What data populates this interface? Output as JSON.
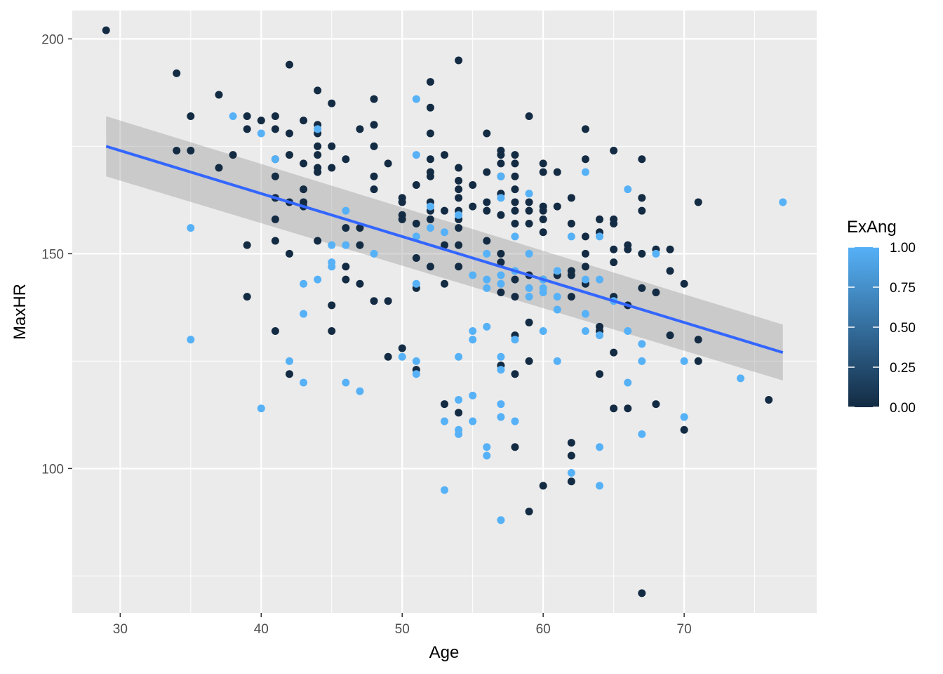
{
  "chart_data": {
    "type": "scatter",
    "xlabel": "Age",
    "ylabel": "MaxHR",
    "xlim": [
      26.6,
      79.4
    ],
    "ylim": [
      66.4,
      206.6
    ],
    "x_ticks": [
      30,
      40,
      50,
      60,
      70
    ],
    "y_ticks": [
      100,
      150,
      200
    ],
    "grid": true,
    "legend": {
      "title": "ExAng",
      "position": "right",
      "type": "colorbar",
      "ticks": [
        "1.00",
        "0.75",
        "0.50",
        "0.25",
        "0.00"
      ],
      "low_color": "#132b43",
      "high_color": "#56b1f7"
    },
    "smooth": {
      "method": "lm",
      "x": [
        29,
        77
      ],
      "y": [
        175,
        127
      ],
      "ci_upper": [
        182,
        133.5
      ],
      "ci_lower": [
        168,
        120.5
      ],
      "line_color": "#3366ff",
      "band_color": "#999999"
    },
    "points_exang0": [
      [
        29,
        202
      ],
      [
        34,
        192
      ],
      [
        34,
        174
      ],
      [
        35,
        182
      ],
      [
        35,
        174
      ],
      [
        37,
        187
      ],
      [
        37,
        170
      ],
      [
        38,
        173
      ],
      [
        39,
        182
      ],
      [
        39,
        179
      ],
      [
        39,
        152
      ],
      [
        39,
        140
      ],
      [
        40,
        181
      ],
      [
        41,
        182
      ],
      [
        41,
        179
      ],
      [
        41,
        172
      ],
      [
        41,
        168
      ],
      [
        41,
        163
      ],
      [
        41,
        158
      ],
      [
        41,
        153
      ],
      [
        41,
        132
      ],
      [
        42,
        194
      ],
      [
        42,
        178
      ],
      [
        42,
        173
      ],
      [
        42,
        162
      ],
      [
        42,
        150
      ],
      [
        42,
        122
      ],
      [
        43,
        181
      ],
      [
        43,
        171
      ],
      [
        43,
        165
      ],
      [
        43,
        162
      ],
      [
        43,
        161
      ],
      [
        44,
        188
      ],
      [
        44,
        180
      ],
      [
        44,
        178
      ],
      [
        44,
        175
      ],
      [
        44,
        173
      ],
      [
        44,
        170
      ],
      [
        44,
        169
      ],
      [
        44,
        153
      ],
      [
        45,
        185
      ],
      [
        45,
        175
      ],
      [
        45,
        170
      ],
      [
        45,
        138
      ],
      [
        45,
        132
      ],
      [
        46,
        172
      ],
      [
        46,
        156
      ],
      [
        46,
        147
      ],
      [
        46,
        144
      ],
      [
        47,
        179
      ],
      [
        47,
        156
      ],
      [
        47,
        152
      ],
      [
        47,
        143
      ],
      [
        48,
        186
      ],
      [
        48,
        180
      ],
      [
        48,
        175
      ],
      [
        48,
        168
      ],
      [
        48,
        165
      ],
      [
        48,
        139
      ],
      [
        49,
        171
      ],
      [
        49,
        139
      ],
      [
        49,
        126
      ],
      [
        50,
        163
      ],
      [
        50,
        162
      ],
      [
        50,
        159
      ],
      [
        50,
        158
      ],
      [
        50,
        128
      ],
      [
        51,
        166
      ],
      [
        51,
        157
      ],
      [
        51,
        149
      ],
      [
        51,
        142
      ],
      [
        51,
        123
      ],
      [
        52,
        190
      ],
      [
        52,
        184
      ],
      [
        52,
        178
      ],
      [
        52,
        172
      ],
      [
        52,
        169
      ],
      [
        52,
        168
      ],
      [
        52,
        162
      ],
      [
        52,
        160
      ],
      [
        52,
        158
      ],
      [
        52,
        147
      ],
      [
        53,
        173
      ],
      [
        53,
        160
      ],
      [
        53,
        152
      ],
      [
        53,
        143
      ],
      [
        53,
        115
      ],
      [
        54,
        195
      ],
      [
        54,
        170
      ],
      [
        54,
        167
      ],
      [
        54,
        165
      ],
      [
        54,
        163
      ],
      [
        54,
        160
      ],
      [
        54,
        158
      ],
      [
        54,
        156
      ],
      [
        54,
        152
      ],
      [
        54,
        147
      ],
      [
        54,
        113
      ],
      [
        55,
        166
      ],
      [
        55,
        161
      ],
      [
        56,
        178
      ],
      [
        56,
        169
      ],
      [
        56,
        162
      ],
      [
        56,
        160
      ],
      [
        56,
        153
      ],
      [
        57,
        174
      ],
      [
        57,
        173
      ],
      [
        57,
        171
      ],
      [
        57,
        168
      ],
      [
        57,
        164
      ],
      [
        57,
        159
      ],
      [
        57,
        150
      ],
      [
        57,
        148
      ],
      [
        57,
        141
      ],
      [
        57,
        124
      ],
      [
        58,
        173
      ],
      [
        58,
        171
      ],
      [
        58,
        168
      ],
      [
        58,
        165
      ],
      [
        58,
        162
      ],
      [
        58,
        160
      ],
      [
        58,
        157
      ],
      [
        58,
        144
      ],
      [
        58,
        140
      ],
      [
        58,
        131
      ],
      [
        58,
        122
      ],
      [
        58,
        105
      ],
      [
        59,
        182
      ],
      [
        59,
        162
      ],
      [
        59,
        160
      ],
      [
        59,
        157
      ],
      [
        59,
        145
      ],
      [
        59,
        134
      ],
      [
        59,
        125
      ],
      [
        59,
        90
      ],
      [
        60,
        171
      ],
      [
        60,
        169
      ],
      [
        60,
        161
      ],
      [
        60,
        160
      ],
      [
        60,
        158
      ],
      [
        60,
        155
      ],
      [
        60,
        144
      ],
      [
        60,
        96
      ],
      [
        61,
        169
      ],
      [
        61,
        161
      ],
      [
        61,
        145
      ],
      [
        62,
        163
      ],
      [
        62,
        157
      ],
      [
        62,
        146
      ],
      [
        62,
        145
      ],
      [
        62,
        140
      ],
      [
        62,
        106
      ],
      [
        62,
        103
      ],
      [
        62,
        97
      ],
      [
        63,
        179
      ],
      [
        63,
        172
      ],
      [
        63,
        154
      ],
      [
        63,
        150
      ],
      [
        63,
        147
      ],
      [
        63,
        143
      ],
      [
        64,
        158
      ],
      [
        64,
        155
      ],
      [
        64,
        133
      ],
      [
        64,
        132
      ],
      [
        64,
        122
      ],
      [
        65,
        174
      ],
      [
        65,
        158
      ],
      [
        65,
        157
      ],
      [
        65,
        151
      ],
      [
        65,
        148
      ],
      [
        65,
        140
      ],
      [
        65,
        127
      ],
      [
        65,
        114
      ],
      [
        66,
        152
      ],
      [
        66,
        151
      ],
      [
        66,
        138
      ],
      [
        66,
        114
      ],
      [
        67,
        172
      ],
      [
        67,
        163
      ],
      [
        67,
        160
      ],
      [
        67,
        150
      ],
      [
        67,
        142
      ],
      [
        67,
        71
      ],
      [
        68,
        151
      ],
      [
        68,
        141
      ],
      [
        68,
        115
      ],
      [
        69,
        151
      ],
      [
        69,
        146
      ],
      [
        69,
        131
      ],
      [
        70,
        143
      ],
      [
        70,
        109
      ],
      [
        71,
        162
      ],
      [
        71,
        130
      ],
      [
        71,
        125
      ],
      [
        76,
        116
      ]
    ],
    "points_exang1": [
      [
        35,
        156
      ],
      [
        35,
        130
      ],
      [
        38,
        182
      ],
      [
        40,
        178
      ],
      [
        40,
        114
      ],
      [
        41,
        172
      ],
      [
        42,
        125
      ],
      [
        43,
        143
      ],
      [
        43,
        136
      ],
      [
        43,
        120
      ],
      [
        44,
        179
      ],
      [
        44,
        144
      ],
      [
        45,
        152
      ],
      [
        45,
        148
      ],
      [
        45,
        147
      ],
      [
        46,
        160
      ],
      [
        46,
        152
      ],
      [
        46,
        120
      ],
      [
        47,
        118
      ],
      [
        48,
        150
      ],
      [
        50,
        126
      ],
      [
        51,
        186
      ],
      [
        51,
        173
      ],
      [
        51,
        154
      ],
      [
        51,
        143
      ],
      [
        51,
        125
      ],
      [
        51,
        122
      ],
      [
        52,
        161
      ],
      [
        52,
        156
      ],
      [
        53,
        155
      ],
      [
        53,
        111
      ],
      [
        53,
        95
      ],
      [
        54,
        159
      ],
      [
        54,
        126
      ],
      [
        54,
        116
      ],
      [
        54,
        109
      ],
      [
        54,
        108
      ],
      [
        55,
        145
      ],
      [
        55,
        132
      ],
      [
        55,
        130
      ],
      [
        55,
        117
      ],
      [
        55,
        111
      ],
      [
        56,
        150
      ],
      [
        56,
        144
      ],
      [
        56,
        142
      ],
      [
        56,
        133
      ],
      [
        56,
        105
      ],
      [
        56,
        103
      ],
      [
        57,
        168
      ],
      [
        57,
        163
      ],
      [
        57,
        145
      ],
      [
        57,
        143
      ],
      [
        57,
        126
      ],
      [
        57,
        123
      ],
      [
        57,
        115
      ],
      [
        57,
        112
      ],
      [
        57,
        88
      ],
      [
        58,
        154
      ],
      [
        58,
        146
      ],
      [
        58,
        130
      ],
      [
        58,
        111
      ],
      [
        59,
        164
      ],
      [
        59,
        150
      ],
      [
        59,
        142
      ],
      [
        59,
        140
      ],
      [
        60,
        144
      ],
      [
        60,
        142
      ],
      [
        60,
        141
      ],
      [
        60,
        132
      ],
      [
        61,
        146
      ],
      [
        61,
        140
      ],
      [
        61,
        137
      ],
      [
        61,
        125
      ],
      [
        62,
        154
      ],
      [
        62,
        99
      ],
      [
        63,
        169
      ],
      [
        63,
        144
      ],
      [
        63,
        136
      ],
      [
        63,
        132
      ],
      [
        64,
        154
      ],
      [
        64,
        144
      ],
      [
        64,
        131
      ],
      [
        64,
        105
      ],
      [
        64,
        96
      ],
      [
        65,
        139
      ],
      [
        66,
        165
      ],
      [
        66,
        132
      ],
      [
        66,
        120
      ],
      [
        67,
        129
      ],
      [
        67,
        125
      ],
      [
        67,
        108
      ],
      [
        68,
        150
      ],
      [
        70,
        125
      ],
      [
        70,
        112
      ],
      [
        74,
        121
      ],
      [
        77,
        162
      ]
    ]
  }
}
